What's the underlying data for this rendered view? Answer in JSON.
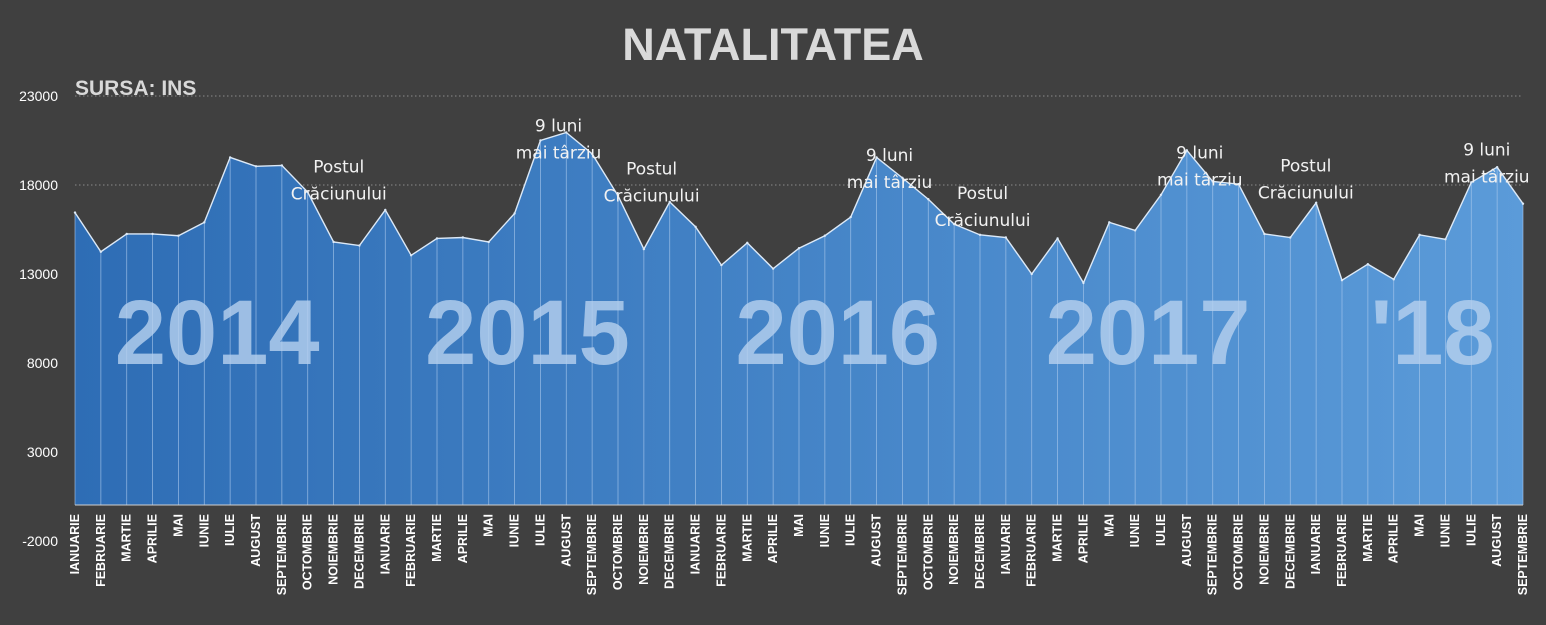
{
  "chart_data": {
    "type": "area",
    "title": "NATALITATEA",
    "subtitle": "SURSA: INS",
    "ylim": [
      -2000,
      23000
    ],
    "yticks": [
      -2000,
      3000,
      8000,
      13000,
      18000,
      23000
    ],
    "grid": "dotted horizontal at 18000 and 23000",
    "legend": "none",
    "colors": {
      "background": "#404040",
      "area_start": "#2e6db5",
      "area_end": "#5b9bd9",
      "line": "#dce9f7",
      "year_label": "#b4cfee"
    },
    "categories": [
      "IANUARIE",
      "FEBRUARIE",
      "MARTIE",
      "APRILIE",
      "MAI",
      "IUNIE",
      "IULIE",
      "AUGUST",
      "SEPTEMBRIE",
      "OCTOMBRIE",
      "NOIEMBRIE",
      "DECEMBRIE",
      "IANUARIE",
      "FEBRUARIE",
      "MARTIE",
      "APRILIE",
      "MAI",
      "IUNIE",
      "IULIE",
      "AUGUST",
      "SEPTEMBRIE",
      "OCTOMBRIE",
      "NOIEMBRIE",
      "DECEMBRIE",
      "IANUARIE",
      "FEBRUARIE",
      "MARTIE",
      "APRILIE",
      "MAI",
      "IUNIE",
      "IULIE",
      "AUGUST",
      "SEPTEMBRIE",
      "OCTOMBRIE",
      "NOIEMBRIE",
      "DECEMBRIE",
      "IANUARIE",
      "FEBRUARIE",
      "MARTIE",
      "APRILIE",
      "MAI",
      "IUNIE",
      "IULIE",
      "AUGUST",
      "SEPTEMBRIE",
      "OCTOMBRIE",
      "NOIEMBRIE",
      "DECEMBRIE",
      "IANUARIE",
      "FEBRUARIE",
      "MARTIE",
      "APRILIE",
      "MAI",
      "IUNIE",
      "IULIE",
      "AUGUST",
      "SEPTEMBRIE"
    ],
    "values": [
      16450,
      14250,
      15250,
      15250,
      15150,
      15900,
      19550,
      19050,
      19100,
      17600,
      14800,
      14600,
      16600,
      14050,
      15000,
      15050,
      14800,
      16400,
      20500,
      20950,
      19750,
      17400,
      14400,
      17050,
      15650,
      13500,
      14750,
      13300,
      14450,
      15150,
      16200,
      19550,
      18400,
      17200,
      15800,
      15200,
      15050,
      13000,
      15000,
      12500,
      15900,
      15450,
      17450,
      19950,
      18200,
      18050,
      15250,
      15050,
      17000,
      12650,
      13550,
      12700,
      15200,
      14950,
      18150,
      19000,
      16950
    ],
    "year_labels": [
      {
        "text": "2014",
        "center_index": 5.5
      },
      {
        "text": "2015",
        "center_index": 17.5
      },
      {
        "text": "2016",
        "center_index": 29.5
      },
      {
        "text": "2017",
        "center_index": 41.5
      },
      {
        "text": "'18",
        "center_index": 52.5
      }
    ],
    "annotations": [
      {
        "lines": [
          "Postul",
          "Crăciunului"
        ],
        "index": 10.2,
        "value": 18700
      },
      {
        "lines": [
          "9 luni",
          "mai târziu"
        ],
        "index": 18.7,
        "value": 21000
      },
      {
        "lines": [
          "Postul",
          "Crăciunului"
        ],
        "index": 22.3,
        "value": 18600
      },
      {
        "lines": [
          "9 luni",
          "mai târziu"
        ],
        "index": 31.5,
        "value": 19350
      },
      {
        "lines": [
          "Postul",
          "Crăciunului"
        ],
        "index": 35.1,
        "value": 17200
      },
      {
        "lines": [
          "9 luni",
          "mai târziu"
        ],
        "index": 43.5,
        "value": 19500
      },
      {
        "lines": [
          "Postul",
          "Crăciunului"
        ],
        "index": 47.6,
        "value": 18750
      },
      {
        "lines": [
          "9 luni",
          "mai târziu"
        ],
        "index": 54.6,
        "value": 19650
      }
    ]
  }
}
